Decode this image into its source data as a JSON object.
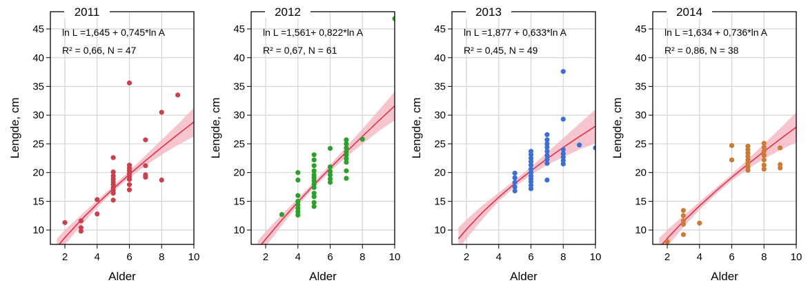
{
  "chart_data": [
    {
      "type": "scatter",
      "title": "2011",
      "xlabel": "Alder",
      "ylabel": "Lengde, cm",
      "annotations": [
        "ln L =1,645 + 0,745*ln A",
        "R² = 0,66, N = 47"
      ],
      "color": "#c8414f",
      "x": [
        2,
        3,
        3,
        3,
        4,
        4,
        5,
        5,
        5,
        5,
        5,
        5,
        5,
        5,
        5,
        5,
        6,
        6,
        6,
        6,
        6,
        6,
        6,
        6,
        6,
        7,
        7,
        7,
        7,
        8,
        8,
        9
      ],
      "values": [
        11.3,
        11.6,
        10.4,
        9.8,
        15.3,
        12.8,
        22.6,
        20.1,
        18.9,
        18.4,
        17.9,
        17.4,
        16.9,
        16.4,
        15.2,
        19.4,
        35.6,
        21.3,
        20.8,
        20.3,
        19.8,
        19.3,
        18.8,
        17.9,
        17.0,
        25.7,
        21.2,
        19.6,
        19.2,
        30.5,
        18.7,
        33.5
      ],
      "fit": {
        "color": "#e0304a",
        "ci_color": "#f4b6c2",
        "x": [
          1.5,
          2,
          3,
          4,
          5,
          6,
          7,
          8,
          9,
          10
        ],
        "values": [
          7.01,
          8.68,
          11.74,
          14.55,
          17.19,
          19.69,
          22.07,
          24.4,
          26.63,
          28.81
        ],
        "ci_lower": [
          5.5,
          7.4,
          10.8,
          13.9,
          16.7,
          19.1,
          21.2,
          23.1,
          24.8,
          26.3
        ],
        "ci_upper": [
          8.5,
          10.0,
          12.6,
          15.2,
          17.7,
          20.3,
          23.0,
          25.7,
          28.4,
          31.3
        ]
      },
      "xlim": [
        1.1,
        10
      ],
      "ylim": [
        7.5,
        48
      ],
      "xticks": [
        2,
        4,
        6,
        8,
        10
      ],
      "yticks": [
        10,
        15,
        20,
        25,
        30,
        35,
        40,
        45
      ],
      "grid": true
    },
    {
      "type": "scatter",
      "title": "2012",
      "xlabel": "Alder",
      "ylabel": "Lengde, cm",
      "annotations": [
        "ln L =1,561+ 0,822*ln A",
        "R² = 0,67, N = 61"
      ],
      "color": "#2ca02c",
      "x": [
        3,
        4,
        4,
        4,
        4,
        4,
        4,
        4,
        4,
        5,
        5,
        5,
        5,
        5,
        5,
        5,
        5,
        5,
        5,
        5,
        5,
        5,
        6,
        6,
        6,
        6,
        6,
        6,
        7,
        7,
        7,
        7,
        7,
        7,
        7,
        7,
        7,
        8,
        10
      ],
      "values": [
        12.7,
        20.0,
        18.7,
        16.0,
        15.0,
        14.4,
        13.8,
        13.2,
        12.6,
        23.1,
        22.2,
        21.2,
        20.3,
        19.6,
        19.1,
        18.6,
        18.0,
        17.4,
        16.4,
        15.8,
        14.8,
        14.1,
        24.2,
        21.0,
        20.2,
        19.6,
        18.9,
        18.3,
        25.7,
        25.0,
        24.3,
        23.6,
        23.0,
        22.4,
        21.8,
        20.3,
        19.0,
        25.8,
        46.8
      ],
      "fit": {
        "color": "#e0304a",
        "ci_color": "#f4b6c2",
        "x": [
          1.5,
          2,
          3,
          4,
          5,
          6,
          7,
          8,
          9,
          10
        ],
        "values": [
          6.65,
          8.42,
          11.75,
          14.89,
          17.88,
          20.78,
          23.59,
          26.31,
          28.99,
          31.61
        ],
        "ci_lower": [
          5.2,
          7.1,
          10.8,
          14.3,
          17.4,
          20.2,
          22.7,
          25.0,
          27.2,
          29.1
        ],
        "ci_upper": [
          8.1,
          9.7,
          12.7,
          15.5,
          18.4,
          21.4,
          24.5,
          27.6,
          30.8,
          34.1
        ]
      },
      "xlim": [
        1.1,
        10
      ],
      "ylim": [
        7.5,
        48
      ],
      "xticks": [
        2,
        4,
        6,
        8,
        10
      ],
      "yticks": [
        10,
        15,
        20,
        25,
        30,
        35,
        40,
        45
      ],
      "grid": true
    },
    {
      "type": "scatter",
      "title": "2013",
      "xlabel": "Alder",
      "ylabel": "Lengde, cm",
      "annotations": [
        "ln L =1,877 + 0,633*ln A",
        "R² = 0,45, N = 49"
      ],
      "color": "#3c6fd1",
      "x": [
        5,
        5,
        5,
        5,
        5,
        6,
        6,
        6,
        6,
        6,
        6,
        6,
        6,
        6,
        6,
        6,
        6,
        7,
        7,
        7,
        7,
        7,
        7,
        7,
        7,
        7,
        8,
        8,
        8,
        8,
        8,
        8,
        8,
        9,
        10
      ],
      "values": [
        19.9,
        19.1,
        18.3,
        17.5,
        16.8,
        23.7,
        23.1,
        22.5,
        21.9,
        21.3,
        20.6,
        20.0,
        19.4,
        18.9,
        18.4,
        17.8,
        17.2,
        26.6,
        25.7,
        25.0,
        24.4,
        23.7,
        23.0,
        22.3,
        21.6,
        18.7,
        37.6,
        29.3,
        24.0,
        23.3,
        22.7,
        22.1,
        21.5,
        24.8,
        24.3
      ],
      "fit": {
        "color": "#e0304a",
        "ci_color": "#f4b6c2",
        "x": [
          1.5,
          2,
          3,
          4,
          5,
          6,
          7,
          8,
          9,
          10
        ],
        "values": [
          8.45,
          10.13,
          13.09,
          15.71,
          18.1,
          20.31,
          22.4,
          24.37,
          26.26,
          28.08
        ],
        "ci_lower": [
          6.5,
          8.5,
          11.9,
          15.0,
          17.5,
          19.6,
          21.3,
          22.7,
          24.0,
          25.1
        ],
        "ci_upper": [
          10.4,
          11.8,
          14.3,
          16.5,
          18.7,
          21.0,
          23.5,
          26.0,
          28.5,
          31.0
        ]
      },
      "xlim": [
        1.1,
        10
      ],
      "ylim": [
        7.5,
        48
      ],
      "xticks": [
        2,
        4,
        6,
        8,
        10
      ],
      "yticks": [
        10,
        15,
        20,
        25,
        30,
        35,
        40,
        45
      ],
      "grid": true
    },
    {
      "type": "scatter",
      "title": "2014",
      "xlabel": "Alder",
      "ylabel": "Lengde, cm",
      "annotations": [
        "ln L =1,634 + 0,736*ln A",
        "R² = 0,86, N = 38"
      ],
      "color": "#cc7a35",
      "x": [
        2,
        3,
        3,
        3,
        3,
        3,
        4,
        6,
        6,
        7,
        7,
        7,
        7,
        7,
        7,
        7,
        7,
        8,
        8,
        8,
        8,
        8,
        8,
        8,
        9,
        9,
        9
      ],
      "values": [
        8.0,
        13.4,
        12.5,
        11.6,
        11.0,
        9.2,
        11.2,
        24.7,
        22.2,
        24.6,
        24.0,
        23.4,
        22.8,
        22.2,
        21.6,
        21.0,
        20.4,
        25.1,
        24.4,
        23.7,
        23.0,
        22.2,
        21.3,
        20.6,
        24.3,
        21.4,
        20.8
      ],
      "fit": {
        "color": "#e0304a",
        "ci_color": "#f4b6c2",
        "x": [
          1.5,
          2,
          3,
          4,
          5,
          6,
          7,
          8,
          9,
          10
        ],
        "values": [
          6.9,
          8.54,
          11.5,
          14.21,
          16.75,
          19.16,
          21.46,
          23.68,
          25.82,
          27.91
        ],
        "ci_lower": [
          5.2,
          7.1,
          10.5,
          13.5,
          16.2,
          18.6,
          20.6,
          22.4,
          23.9,
          25.3
        ],
        "ci_upper": [
          8.6,
          10.0,
          12.5,
          14.9,
          17.3,
          19.7,
          22.3,
          25.0,
          27.7,
          30.5
        ]
      },
      "xlim": [
        1.1,
        10
      ],
      "ylim": [
        7.5,
        48
      ],
      "xticks": [
        2,
        4,
        6,
        8,
        10
      ],
      "yticks": [
        10,
        15,
        20,
        25,
        30,
        35,
        40,
        45
      ],
      "grid": true
    }
  ]
}
